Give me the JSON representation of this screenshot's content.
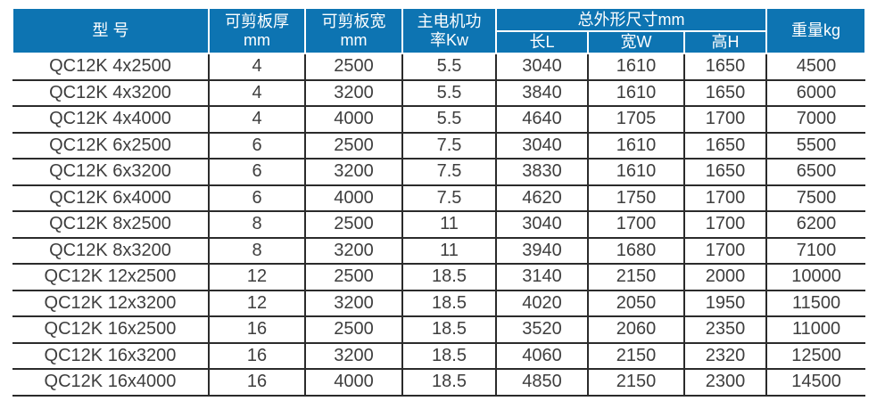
{
  "colors": {
    "header_background": "#0d74b2",
    "header_text": "#ffffff",
    "body_text": "#3e3e3e",
    "grid_line": "#2b2b2b",
    "page_background": "#ffffff"
  },
  "table": {
    "headers": {
      "model": "型 号",
      "thickness_line1": "可剪板厚",
      "thickness_line2": "mm",
      "width_line1": "可剪板宽",
      "width_line2": "mm",
      "power_line1": "主电机功",
      "power_line2": "率Kw",
      "dimensions_group": "总外形尺寸mm",
      "length": "长L",
      "width": "宽W",
      "height": "高H",
      "weight": "重量kg"
    },
    "rows": [
      [
        "QC12K 4x2500",
        "4",
        "2500",
        "5.5",
        "3040",
        "1610",
        "1650",
        "4500"
      ],
      [
        "QC12K 4x3200",
        "4",
        "3200",
        "5.5",
        "3840",
        "1610",
        "1650",
        "6000"
      ],
      [
        "QC12K 4x4000",
        "4",
        "4000",
        "5.5",
        "4640",
        "1705",
        "1700",
        "7000"
      ],
      [
        "QC12K 6x2500",
        "6",
        "2500",
        "7.5",
        "3040",
        "1610",
        "1650",
        "5500"
      ],
      [
        "QC12K 6x3200",
        "6",
        "3200",
        "7.5",
        "3830",
        "1610",
        "1650",
        "6500"
      ],
      [
        "QC12K 6x4000",
        "6",
        "4000",
        "7.5",
        "4620",
        "1750",
        "1700",
        "7500"
      ],
      [
        "QC12K 8x2500",
        "8",
        "2500",
        "11",
        "3040",
        "1700",
        "1700",
        "6200"
      ],
      [
        "QC12K 8x3200",
        "8",
        "3200",
        "11",
        "3940",
        "1680",
        "1700",
        "7100"
      ],
      [
        "QC12K 12x2500",
        "12",
        "2500",
        "18.5",
        "3140",
        "2150",
        "2000",
        "10000"
      ],
      [
        "QC12K 12x3200",
        "12",
        "3200",
        "18.5",
        "4020",
        "2050",
        "1950",
        "11500"
      ],
      [
        "QC12K 16x2500",
        "16",
        "2500",
        "18.5",
        "3520",
        "2060",
        "2350",
        "11000"
      ],
      [
        "QC12K 16x3200",
        "16",
        "3200",
        "18.5",
        "4060",
        "2150",
        "2320",
        "12500"
      ],
      [
        "QC12K 16x4000",
        "16",
        "4000",
        "18.5",
        "4850",
        "2150",
        "2300",
        "14500"
      ]
    ]
  }
}
